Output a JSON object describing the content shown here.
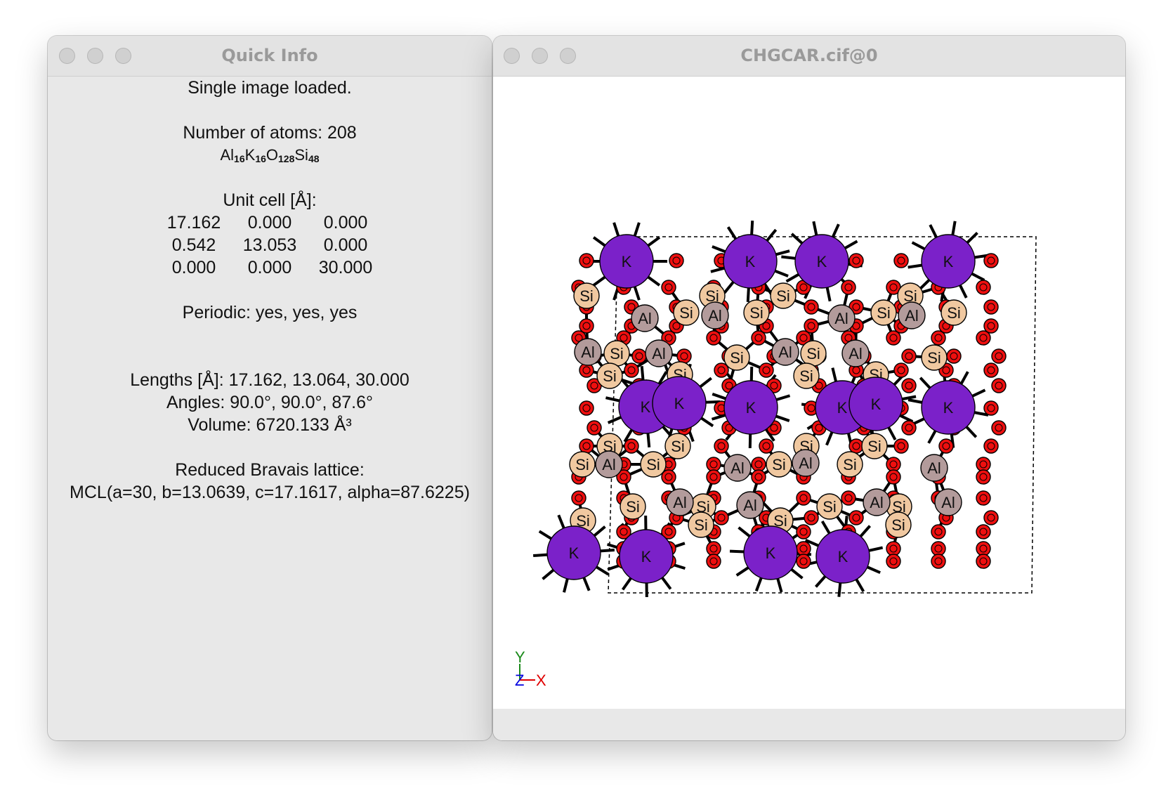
{
  "windows": {
    "quick_info": {
      "title": "Quick Info",
      "status": "Single image loaded.",
      "num_atoms": "Number of atoms: 208",
      "formula": [
        {
          "el": "Al",
          "n": "16"
        },
        {
          "el": "K",
          "n": "16"
        },
        {
          "el": "O",
          "n": "128"
        },
        {
          "el": "Si",
          "n": "48"
        }
      ],
      "unit_cell_label": "Unit cell [Å]:",
      "unit_cell": [
        [
          "17.162",
          "0.000",
          "0.000"
        ],
        [
          "0.542",
          "13.053",
          "0.000"
        ],
        [
          "0.000",
          "0.000",
          "30.000"
        ]
      ],
      "periodic": "Periodic: yes, yes, yes",
      "lengths": "Lengths [Å]: 17.162, 13.064, 30.000",
      "angles": "Angles: 90.0°, 90.0°, 87.6°",
      "volume": "Volume: 6720.133 Å³",
      "bravais_label": "Reduced Bravais lattice:",
      "bravais": "MCL(a=30, b=13.0639, c=17.1617, alpha=87.6225)"
    },
    "viewer": {
      "title": "CHGCAR.cif@0",
      "axes": {
        "y": "Y",
        "z": "Z",
        "x": "X"
      }
    }
  },
  "elements": {
    "K": {
      "label": "K",
      "color": "#7b21c9"
    },
    "Al": {
      "label": "Al",
      "color": "#b39b9b"
    },
    "Si": {
      "label": "Si",
      "color": "#f0c8a0"
    },
    "O": {
      "label": "",
      "color": "#ee0f0f"
    }
  },
  "colors": {
    "axis_x": "#e00000",
    "axis_y": "#1a8a1a",
    "axis_z": "#0000e0"
  }
}
